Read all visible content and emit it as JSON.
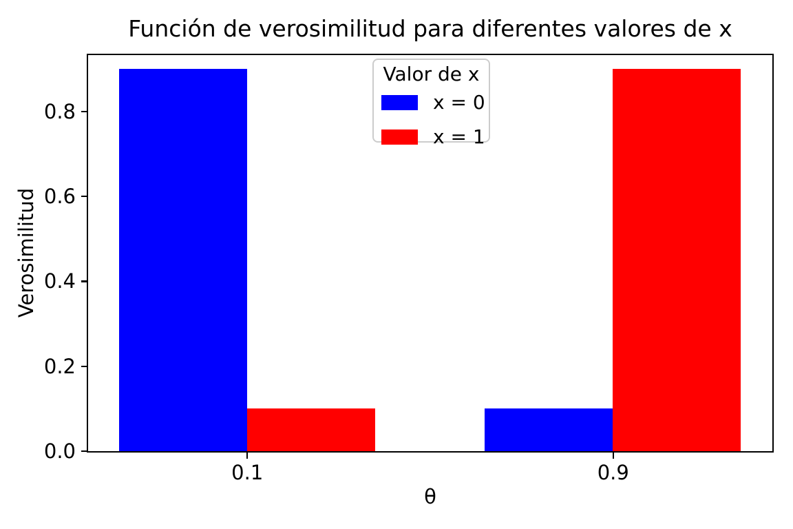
{
  "chart_data": {
    "type": "bar",
    "title": "Función de verosimilitud para diferentes valores de x",
    "xlabel": "θ",
    "ylabel": "Verosimilitud",
    "categories": [
      "0.1",
      "0.9"
    ],
    "x_positions": [
      0,
      1
    ],
    "series": [
      {
        "name": "x = 0",
        "color": "#0000ff",
        "values": [
          0.9,
          0.1
        ]
      },
      {
        "name": "x = 1",
        "color": "#ff0000",
        "values": [
          0.1,
          0.9
        ]
      }
    ],
    "legend": {
      "title": "Valor de x",
      "position": "upper center",
      "frame": true,
      "border_color": "#cccccc"
    },
    "yticks": {
      "values": [
        0.0,
        0.2,
        0.4,
        0.6,
        0.8
      ],
      "labels": [
        "0.0",
        "0.2",
        "0.4",
        "0.6",
        "0.8"
      ]
    },
    "ylim": [
      0,
      0.933
    ],
    "xlim": [
      -0.435,
      1.435
    ],
    "bar_width": 0.35,
    "grid": false,
    "background": "#ffffff",
    "text_color": "#000000"
  }
}
